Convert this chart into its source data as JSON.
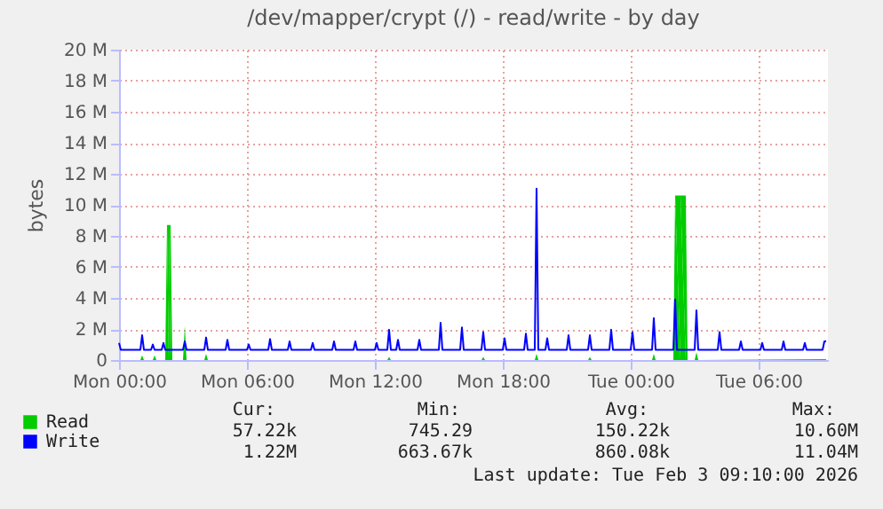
{
  "chart_data": {
    "type": "line",
    "title": "/dev/mapper/crypt (/) - read/write - by day",
    "ylabel": "bytes",
    "xlim": [
      "2026-02-02T00:00",
      "2026-02-03T09:15"
    ],
    "xticks": [
      {
        "value": "2026-02-02T00:00",
        "label": "Mon 00:00"
      },
      {
        "value": "2026-02-02T06:00",
        "label": "Mon 06:00"
      },
      {
        "value": "2026-02-02T12:00",
        "label": "Mon 12:00"
      },
      {
        "value": "2026-02-02T18:00",
        "label": "Mon 18:00"
      },
      {
        "value": "2026-02-03T00:00",
        "label": "Tue 00:00"
      },
      {
        "value": "2026-02-03T06:00",
        "label": "Tue 06:00"
      }
    ],
    "ylim": [
      0,
      20
    ],
    "yticks": [
      0,
      {
        "value": 2,
        "label": "2 M"
      },
      {
        "value": 4,
        "label": "4 M"
      },
      {
        "value": 6,
        "label": "6 M"
      },
      {
        "value": 8,
        "label": "8 M"
      },
      {
        "value": 10,
        "label": "10 M"
      },
      {
        "value": 12,
        "label": "12 M"
      },
      {
        "value": 14,
        "label": "14 M"
      },
      {
        "value": 16,
        "label": "16 M"
      },
      {
        "value": 18,
        "label": "18 M"
      },
      {
        "value": 20,
        "label": "20 M"
      }
    ],
    "grid": true,
    "legend": "bottom left",
    "marker": "none",
    "line_style": "solid",
    "series": [
      {
        "name": "Read",
        "type": "area",
        "color": "#00cc00",
        "x": [
          "2026-02-02T00:00",
          "2026-02-02T01:00",
          "2026-02-02T01:05",
          "2026-02-02T01:10",
          "2026-02-02T01:35",
          "2026-02-02T01:40",
          "2026-02-02T01:45",
          "2026-02-02T02:10",
          "2026-02-02T02:15",
          "2026-02-02T02:20",
          "2026-02-02T02:25",
          "2026-02-02T02:30",
          "2026-02-02T03:00",
          "2026-02-02T03:05",
          "2026-02-02T03:10",
          "2026-02-02T04:00",
          "2026-02-02T04:05",
          "2026-02-02T04:10",
          "2026-02-02T12:35",
          "2026-02-02T12:40",
          "2026-02-02T12:45",
          "2026-02-02T17:00",
          "2026-02-02T17:05",
          "2026-02-02T17:10",
          "2026-02-02T19:30",
          "2026-02-02T19:35",
          "2026-02-02T19:40",
          "2026-02-02T22:00",
          "2026-02-02T22:05",
          "2026-02-02T22:10",
          "2026-02-03T01:00",
          "2026-02-03T01:05",
          "2026-02-03T01:10",
          "2026-02-03T02:00",
          "2026-02-03T02:05",
          "2026-02-03T02:20",
          "2026-02-03T02:35",
          "2026-02-03T02:40",
          "2026-02-03T03:00",
          "2026-02-03T03:05",
          "2026-02-03T03:10",
          "2026-02-03T09:10"
        ],
        "values": [
          0,
          0,
          0.3,
          0,
          0,
          0.3,
          0,
          0,
          8.7,
          8.7,
          8.7,
          0,
          0,
          2.2,
          0,
          0,
          0.4,
          0,
          0,
          0.2,
          0,
          0,
          0.2,
          0,
          0,
          0.4,
          0,
          0,
          0.2,
          0,
          0,
          0.4,
          0,
          0,
          10.6,
          10.6,
          10.6,
          0,
          0,
          0.5,
          0,
          0.06
        ]
      },
      {
        "name": "Write",
        "color": "#0000ff",
        "x": [
          "2026-02-02T00:00",
          "2026-02-02T00:05",
          "2026-02-02T01:00",
          "2026-02-02T01:05",
          "2026-02-02T01:10",
          "2026-02-02T01:30",
          "2026-02-02T01:35",
          "2026-02-02T01:40",
          "2026-02-02T02:00",
          "2026-02-02T02:05",
          "2026-02-02T02:10",
          "2026-02-02T03:00",
          "2026-02-02T03:05",
          "2026-02-02T03:10",
          "2026-02-02T04:00",
          "2026-02-02T04:05",
          "2026-02-02T04:10",
          "2026-02-02T05:00",
          "2026-02-02T05:05",
          "2026-02-02T05:10",
          "2026-02-02T06:00",
          "2026-02-02T06:05",
          "2026-02-02T06:10",
          "2026-02-02T07:00",
          "2026-02-02T07:05",
          "2026-02-02T07:10",
          "2026-02-02T07:55",
          "2026-02-02T08:00",
          "2026-02-02T08:05",
          "2026-02-02T09:00",
          "2026-02-02T09:05",
          "2026-02-02T09:10",
          "2026-02-02T10:00",
          "2026-02-02T10:05",
          "2026-02-02T10:10",
          "2026-02-02T11:00",
          "2026-02-02T11:05",
          "2026-02-02T11:10",
          "2026-02-02T12:00",
          "2026-02-02T12:05",
          "2026-02-02T12:10",
          "2026-02-02T12:35",
          "2026-02-02T12:40",
          "2026-02-02T12:45",
          "2026-02-02T13:00",
          "2026-02-02T13:05",
          "2026-02-02T13:10",
          "2026-02-02T14:00",
          "2026-02-02T14:05",
          "2026-02-02T14:10",
          "2026-02-02T15:00",
          "2026-02-02T15:05",
          "2026-02-02T15:10",
          "2026-02-02T16:00",
          "2026-02-02T16:05",
          "2026-02-02T16:10",
          "2026-02-02T17:00",
          "2026-02-02T17:05",
          "2026-02-02T17:10",
          "2026-02-02T18:00",
          "2026-02-02T18:05",
          "2026-02-02T18:10",
          "2026-02-02T19:00",
          "2026-02-02T19:05",
          "2026-02-02T19:10",
          "2026-02-02T19:30",
          "2026-02-02T19:35",
          "2026-02-02T19:40",
          "2026-02-02T20:00",
          "2026-02-02T20:05",
          "2026-02-02T20:10",
          "2026-02-02T21:00",
          "2026-02-02T21:05",
          "2026-02-02T21:10",
          "2026-02-02T22:00",
          "2026-02-02T22:05",
          "2026-02-02T22:10",
          "2026-02-02T23:00",
          "2026-02-02T23:05",
          "2026-02-02T23:10",
          "2026-02-03T00:00",
          "2026-02-03T00:05",
          "2026-02-03T00:10",
          "2026-02-03T01:00",
          "2026-02-03T01:05",
          "2026-02-03T01:10",
          "2026-02-03T02:00",
          "2026-02-03T02:05",
          "2026-02-03T02:10",
          "2026-02-03T03:00",
          "2026-02-03T03:05",
          "2026-02-03T03:10",
          "2026-02-03T04:05",
          "2026-02-03T04:10",
          "2026-02-03T04:15",
          "2026-02-03T05:05",
          "2026-02-03T05:10",
          "2026-02-03T05:15",
          "2026-02-03T06:05",
          "2026-02-03T06:10",
          "2026-02-03T06:15",
          "2026-02-03T07:05",
          "2026-02-03T07:10",
          "2026-02-03T07:15",
          "2026-02-03T08:05",
          "2026-02-03T08:10",
          "2026-02-03T08:15",
          "2026-02-03T09:00",
          "2026-02-03T09:05",
          "2026-02-03T09:10"
        ],
        "values": [
          1.1,
          0.66,
          0.66,
          1.6,
          0.66,
          0.66,
          1.0,
          0.66,
          0.66,
          1.1,
          0.66,
          0.66,
          1.2,
          0.66,
          0.66,
          1.45,
          0.66,
          0.66,
          1.3,
          0.66,
          0.66,
          1.0,
          0.66,
          0.66,
          1.35,
          0.66,
          0.66,
          1.2,
          0.66,
          0.66,
          1.1,
          0.66,
          0.66,
          1.2,
          0.66,
          0.66,
          1.2,
          0.66,
          0.66,
          1.1,
          0.66,
          0.66,
          1.95,
          0.66,
          0.66,
          1.3,
          0.66,
          0.66,
          1.3,
          0.66,
          0.66,
          2.4,
          0.66,
          0.66,
          2.1,
          0.66,
          0.66,
          1.8,
          0.66,
          0.66,
          1.4,
          0.66,
          0.66,
          1.7,
          0.66,
          0.66,
          11.04,
          0.66,
          0.66,
          1.4,
          0.66,
          0.66,
          1.6,
          0.66,
          0.66,
          1.6,
          0.66,
          0.66,
          1.95,
          0.66,
          0.66,
          1.8,
          0.66,
          0.66,
          2.7,
          0.66,
          0.66,
          3.9,
          0.66,
          0.66,
          3.2,
          0.66,
          0.66,
          1.8,
          0.66,
          0.66,
          1.2,
          0.66,
          0.66,
          1.1,
          0.66,
          0.66,
          1.2,
          0.66,
          0.66,
          1.1,
          0.66,
          0.66,
          1.2,
          1.22
        ]
      }
    ],
    "annotations": [
      "Cur:",
      "Min:",
      "Avg:",
      "Max:",
      "57.22k",
      "745.29",
      "150.22k",
      "10.60M",
      "1.22M",
      "663.67k",
      "860.08k",
      "11.04M",
      "Last update: Tue Feb  3 09:10:00 2026"
    ]
  }
}
